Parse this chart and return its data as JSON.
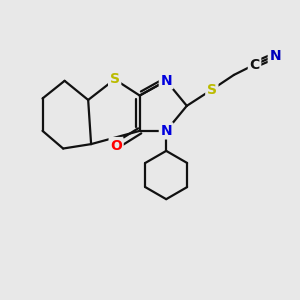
{
  "bg_color": "#e8e8e8",
  "atom_colors": {
    "S_thio": "#bbbb00",
    "S_side": "#bbbb00",
    "N": "#0000dd",
    "O": "#ff0000",
    "C_nitrile": "#111111",
    "N_nitrile": "#0000bb"
  },
  "bond_color": "#111111",
  "bond_width": 1.6,
  "fig_size": [
    3.0,
    3.0
  ],
  "dpi": 100,
  "xlim": [
    0,
    10
  ],
  "ylim": [
    0,
    10
  ]
}
